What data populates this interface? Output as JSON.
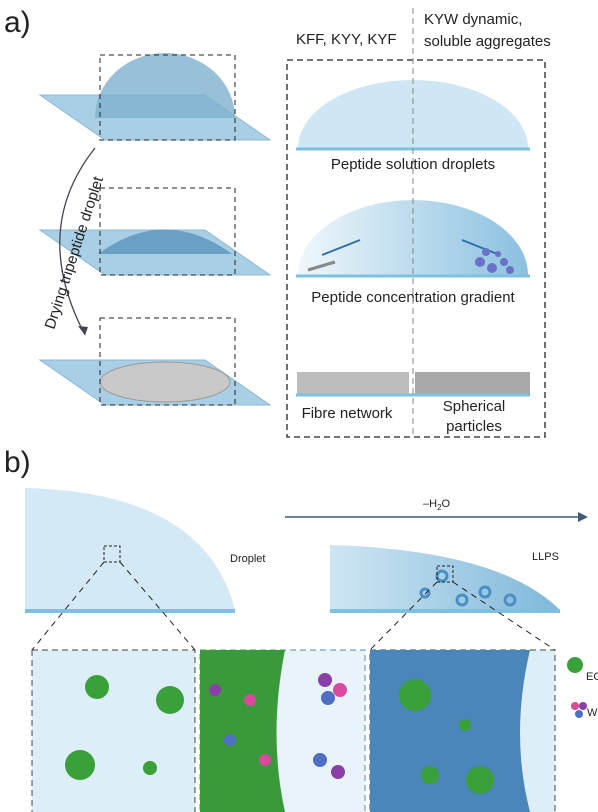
{
  "panel_a": {
    "label": "a)",
    "columns": {
      "left": "KFF, KYY, KYF",
      "right": [
        "KYW dynamic,",
        "soluble aggregates"
      ]
    },
    "arrow_label": "Drying tripeptide droplet",
    "stages": [
      "Peptide solution droplets",
      "Peptide concentration gradient"
    ],
    "results": {
      "left": "Fibre network",
      "right": [
        "Spherical",
        "particles"
      ]
    }
  },
  "panel_b": {
    "label": "b)",
    "arrow_label": {
      "prefix": "–H",
      "subscript": "2",
      "suffix": "O"
    },
    "droplet_label": "Droplet",
    "llps_label": "LLPS",
    "legend": [
      "EGPF",
      "WKY"
    ]
  }
}
